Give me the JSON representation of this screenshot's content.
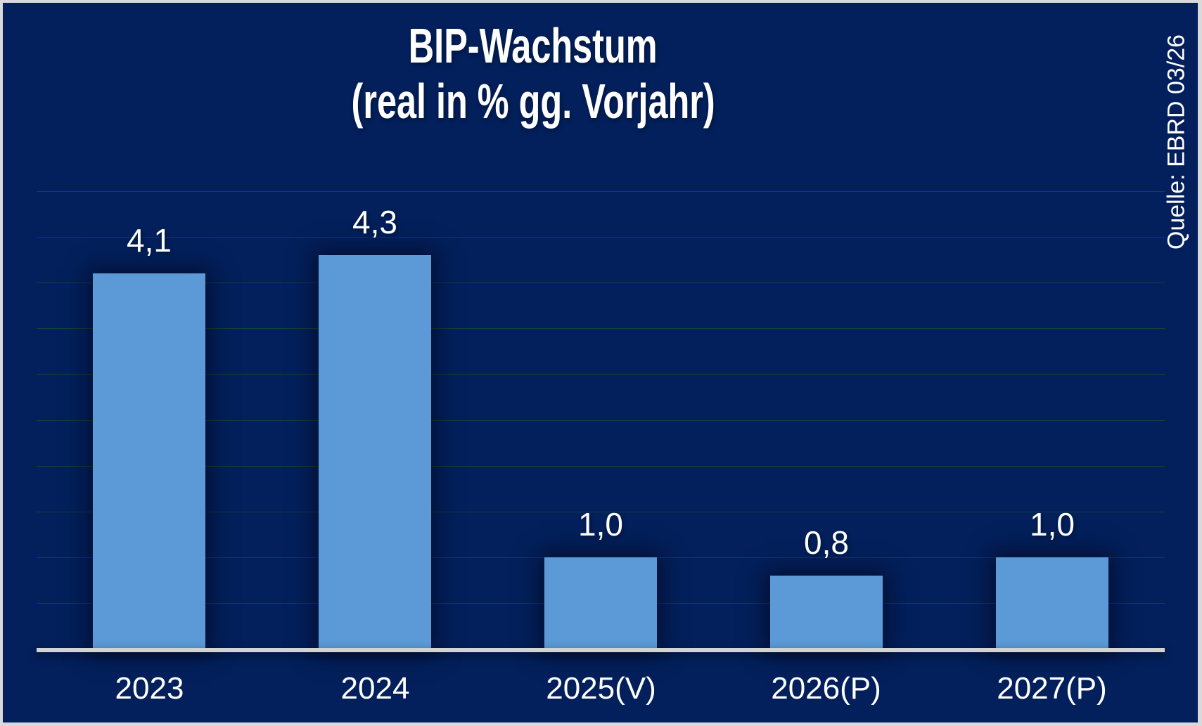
{
  "title": {
    "line1": "BIP-Wachstum",
    "line2": "(real in % gg. Vorjahr)"
  },
  "source_note": "Quelle: EBRD 03/26",
  "chart_data": {
    "type": "bar",
    "title": "BIP-Wachstum (real in % gg. Vorjahr)",
    "categories": [
      "2023",
      "2024",
      "2025(V)",
      "2026(P)",
      "2027(P)"
    ],
    "values": [
      4.1,
      4.3,
      1.0,
      0.8,
      1.0
    ],
    "value_labels": [
      "4,1",
      "4,3",
      "1,0",
      "0,8",
      "1,0"
    ],
    "xlabel": "",
    "ylabel": "",
    "ylim": [
      0,
      5
    ],
    "gridline_step": 0.5,
    "grid": true,
    "legend": false,
    "bar_color": "#5B9AD6",
    "background_color": "#03205C",
    "gridline_color": "#0F4637",
    "axis_line_color": "#D3D3D6",
    "label_color": "#FFFFFF",
    "source": "Quelle: EBRD 03/26"
  }
}
